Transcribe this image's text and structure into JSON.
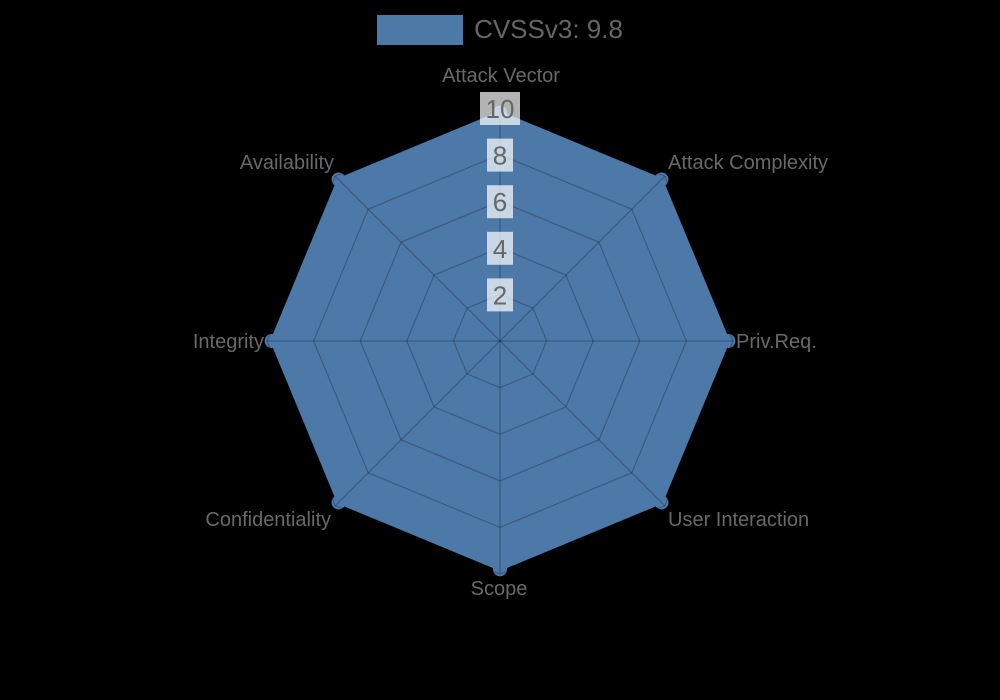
{
  "page": {
    "background": "#000000"
  },
  "legend": {
    "label": "CVSSv3: 9.8",
    "position": "top"
  },
  "chart_data": {
    "type": "radar",
    "title": "CVSSv3: 9.8",
    "categories": [
      "Attack Vector",
      "Attack Complexity",
      "Priv.Req.",
      "User Interaction",
      "Scope",
      "Confidentiality",
      "Integrity",
      "Availability"
    ],
    "series": [
      {
        "name": "CVSSv3: 9.8",
        "values": [
          9.8,
          9.8,
          9.8,
          9.8,
          9.8,
          9.8,
          9.8,
          9.8
        ]
      }
    ],
    "rmax": 10,
    "rticks": [
      2,
      4,
      6,
      8,
      10
    ],
    "grid": "on",
    "legend_position": "top",
    "colors": {
      "fill": "#4d79a8",
      "grid": "rgba(0,0,0,0.25)",
      "tick_text": "#666666",
      "tick_backdrop": "rgba(255,255,255,0.70)",
      "label": "#696969",
      "legend_text": "#666666",
      "background": "#000000"
    }
  }
}
